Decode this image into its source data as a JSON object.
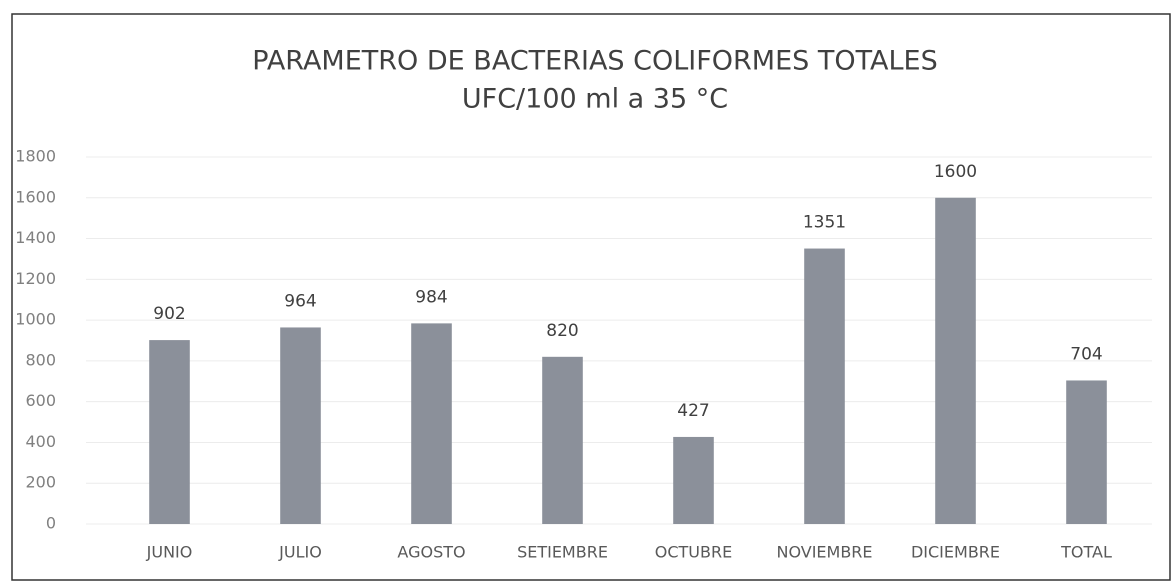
{
  "chart_data": {
    "type": "bar",
    "title": "PARAMETRO DE BACTERIAS COLIFORMES TOTALES",
    "subtitle": "UFC/100 ml a 35 °C",
    "categories": [
      "JUNIO",
      "JULIO",
      "AGOSTO",
      "SETIEMBRE",
      "OCTUBRE",
      "NOVIEMBRE",
      "DICIEMBRE",
      "TOTAL"
    ],
    "values": [
      902,
      964,
      984,
      820,
      427,
      1351,
      1600,
      704
    ],
    "color": "#8b909a",
    "ylim": [
      0,
      1800
    ],
    "yticks": [
      0,
      200,
      400,
      600,
      800,
      1000,
      1200,
      1400,
      1600,
      1800
    ],
    "grid": true
  }
}
